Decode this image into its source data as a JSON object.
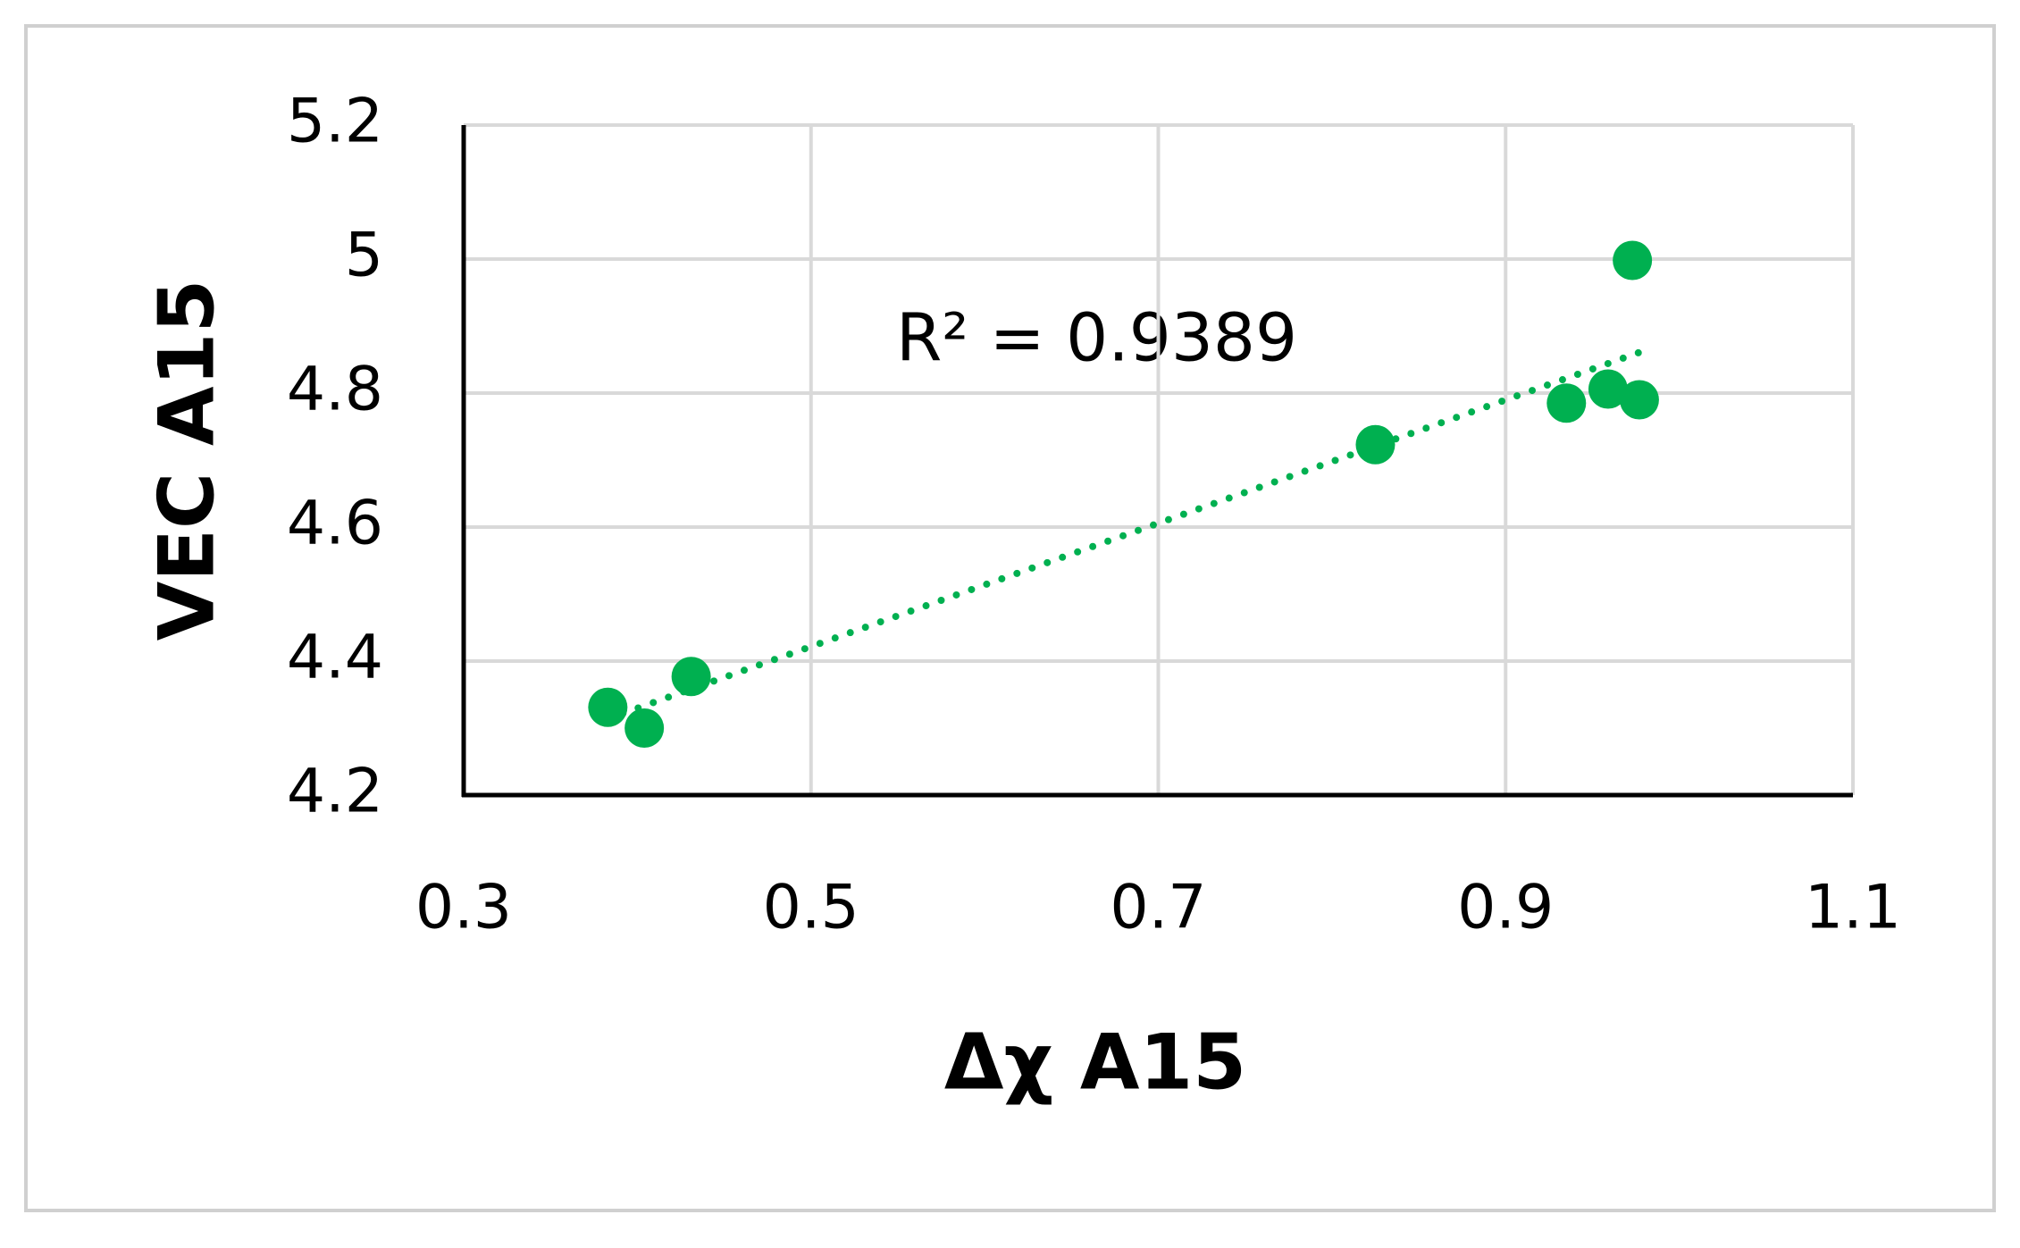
{
  "chart_data": {
    "type": "scatter",
    "x_label": "Δχ A15",
    "y_label": "VEC A15",
    "annotation": "R² = 0.9389",
    "trendline": true,
    "series": [
      {
        "color": "#00b050",
        "x": [
          0.383,
          0.404,
          0.431,
          0.825,
          0.935,
          0.959,
          0.977,
          0.973
        ],
        "values": [
          4.331,
          4.3,
          4.377,
          4.723,
          4.785,
          4.806,
          4.79,
          4.998
        ]
      }
    ],
    "xlim": [
      0.3,
      1.1
    ],
    "xticks": [
      0.3,
      0.5,
      0.7,
      0.9,
      1.1
    ],
    "ylim": [
      4.2,
      5.2
    ],
    "yticks": [
      4.2,
      4.4,
      4.6,
      4.8,
      5,
      5.2
    ],
    "grid": true
  }
}
